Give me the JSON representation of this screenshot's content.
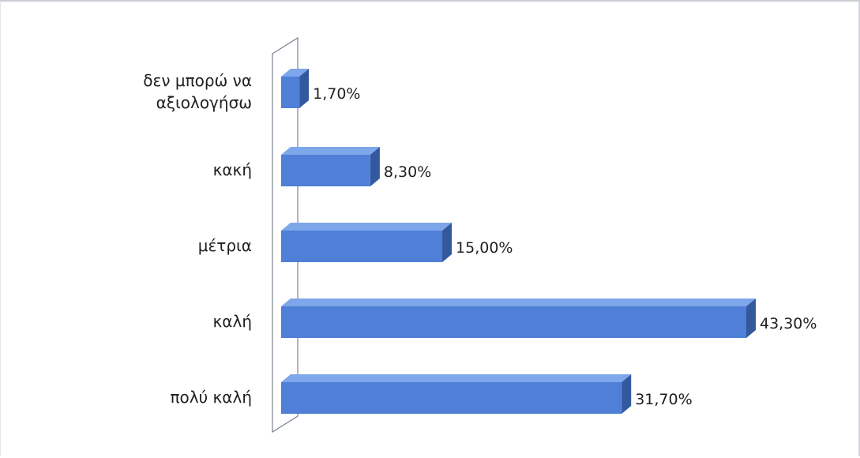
{
  "chart_data": {
    "type": "bar",
    "orientation": "horizontal",
    "style": "3d-bar",
    "categories": [
      "δεν μπορώ να αξιολογήσω",
      "κακή",
      "μέτρια",
      "καλή",
      "πολύ καλή"
    ],
    "category_lines": [
      [
        "δεν μπορώ να",
        "αξιολογήσω"
      ],
      [
        "κακή"
      ],
      [
        "μέτρια"
      ],
      [
        "καλή"
      ],
      [
        "πολύ καλή"
      ]
    ],
    "values": [
      1.7,
      8.3,
      15.0,
      43.3,
      31.7
    ],
    "value_labels": [
      "1,70%",
      "8,30%",
      "15,00%",
      "43,30%",
      "31,70%"
    ],
    "unit": "%",
    "xlim": [
      0,
      43.3
    ],
    "grid": false,
    "legend": "none",
    "colors": {
      "bar_front": "#4f7fd6",
      "bar_top": "#7ea6ea",
      "bar_side": "#34589e",
      "wall": "#7a8290",
      "text": "#1f1f1f"
    }
  }
}
